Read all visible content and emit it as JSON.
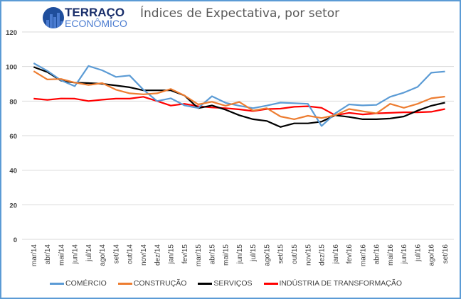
{
  "logo": {
    "line1": "TERRAÇO",
    "line2": "ECONÔMICO"
  },
  "chart_data": {
    "type": "line",
    "title": "Índices de Expectativa, por setor",
    "xlabel": "",
    "ylabel": "",
    "ylim": [
      0,
      120
    ],
    "yticks": [
      "0",
      "20",
      "40",
      "60",
      "80",
      "100",
      "120"
    ],
    "grid": true,
    "legend_position": "bottom",
    "categories": [
      "mar/14",
      "abr/14",
      "mai/14",
      "jun/14",
      "jul/14",
      "ago/14",
      "set/14",
      "out/14",
      "nov/14",
      "dez/14",
      "jan/15",
      "fev/15",
      "mar/15",
      "abr/15",
      "mai/15",
      "jun/15",
      "jul/15",
      "ago/15",
      "set/15",
      "out/15",
      "nov/15",
      "dez/15",
      "jan/16",
      "fev/16",
      "mar/16",
      "abr/16",
      "mai/16",
      "jun/16",
      "jul/16",
      "ago/16",
      "set/16"
    ],
    "series": [
      {
        "name": "COMÉRCIO",
        "color": "#5b9bd5",
        "values": [
          101.9,
          97.5,
          92,
          88.6,
          100.3,
          97.8,
          94,
          94.8,
          86.6,
          80,
          81.6,
          77.5,
          76,
          82.8,
          79,
          77.3,
          75.9,
          77.4,
          79.1,
          78.8,
          78.4,
          65.6,
          72.9,
          78.1,
          77.5,
          77.8,
          82.5,
          84.9,
          88.2,
          96.4,
          97.1
        ]
      },
      {
        "name": "CONSTRUÇÃO",
        "color": "#ed7d31",
        "values": [
          97.3,
          92.5,
          92.8,
          90.7,
          89.3,
          90.4,
          86.6,
          84.5,
          83.9,
          84.5,
          87,
          83.2,
          78.1,
          79.6,
          77.3,
          79.5,
          74.5,
          75.9,
          71.1,
          69.5,
          71.5,
          70.2,
          71.8,
          75.4,
          74.1,
          72.9,
          78.4,
          76.1,
          78.4,
          81.6,
          82.6
        ]
      },
      {
        "name": "SERVIÇOS",
        "color": "#000000",
        "values": [
          99.7,
          96.8,
          91.8,
          90.7,
          90.4,
          90,
          89,
          88,
          86.2,
          86.2,
          86.2,
          83.2,
          75.9,
          77.5,
          75,
          71.8,
          69.5,
          68.5,
          65,
          67.1,
          67.1,
          68.1,
          71.8,
          70.8,
          69.5,
          69.5,
          69.9,
          71.1,
          74.5,
          77.3,
          79.1
        ]
      },
      {
        "name": "INDÚSTRIA DE TRANSFORMAÇÃO",
        "color": "#ff0000",
        "values": [
          81.4,
          80.7,
          81.5,
          81.4,
          80,
          80.8,
          81.4,
          81.4,
          82.5,
          80,
          77.4,
          78.4,
          77,
          76.3,
          75.9,
          75.2,
          74.2,
          75.4,
          75.6,
          76.7,
          77,
          76.1,
          71.8,
          73.2,
          72.3,
          72.9,
          73.2,
          73.5,
          73.5,
          73.8,
          75.4
        ]
      }
    ]
  }
}
